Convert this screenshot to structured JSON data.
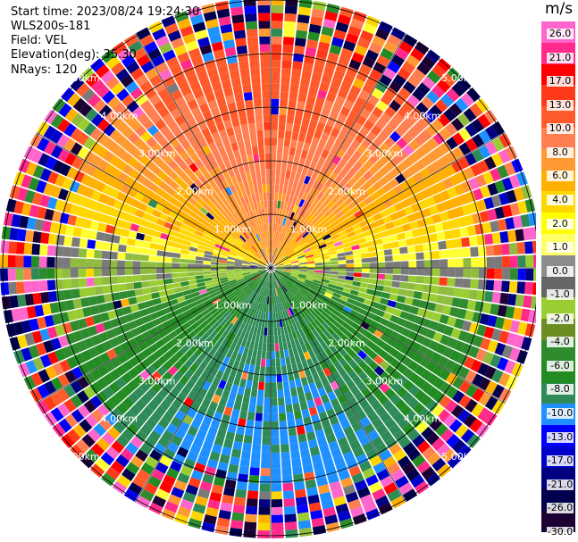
{
  "header": {
    "start_time": "Start time: 2023/08/24 19:24:30",
    "station": "WLS200s-181",
    "field": "Field: VEL",
    "elevation": "Elevation(deg): 35.30",
    "nrays": "NRays: 120"
  },
  "colorbar": {
    "unit": "m/s",
    "ticks": [
      "26.0",
      "21.0",
      "17.0",
      "13.0",
      "10.0",
      "8.0",
      "6.0",
      "4.0",
      "2.0",
      "1.0",
      "0.0",
      "-1.0",
      "-2.0",
      "-4.0",
      "-6.0",
      "-8.0",
      "-10.0",
      "-13.0",
      "-17.0",
      "-21.0",
      "-26.0",
      "-30.0"
    ],
    "colors": [
      "#ff66cc",
      "#ff2a8a",
      "#ff0000",
      "#ff3a1a",
      "#ff5a2a",
      "#ff7f50",
      "#ff9a33",
      "#ffb000",
      "#ffd700",
      "#ffff00",
      "#ffff66",
      "#8c8c8c",
      "#666666",
      "#9acd32",
      "#6b8e23",
      "#2e8b2e",
      "#228b22",
      "#2e8b57",
      "#1e90ff",
      "#0000ff",
      "#0000cd",
      "#000080",
      "#00004d",
      "#1a0033"
    ]
  },
  "chart_data": {
    "type": "heatmap",
    "title": "",
    "field": "VEL",
    "units": "m/s",
    "elevation_deg": 35.3,
    "n_rays": 120,
    "range_rings_km": [
      1.0,
      2.0,
      3.0,
      4.0,
      5.0
    ],
    "range_labels": [
      "1.00km",
      "2.00km",
      "3.00km",
      "4.00km",
      "5.00km"
    ],
    "value_range": [
      -30.0,
      30.0
    ],
    "pattern": {
      "north_sector_speed_ms": [
        2.0,
        10.0
      ],
      "south_sector_speed_ms": [
        -8.0,
        -1.0
      ],
      "east_west_near_zero_ms": [
        -2.0,
        1.0
      ],
      "noise_beyond_km": 4.0
    }
  }
}
